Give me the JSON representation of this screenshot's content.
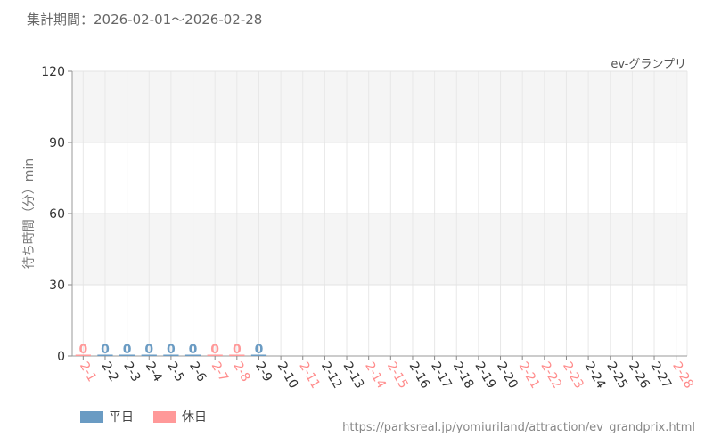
{
  "header": {
    "period": "集計期間：2026-02-01〜2026-02-28"
  },
  "attraction_name": "ev-グランプリ",
  "source_url": "https://parksreal.jp/yomiuriland/attraction/ev_grandprix.html",
  "legend": [
    {
      "label": "平日",
      "color": "#6a9bc3"
    },
    {
      "label": "休日",
      "color": "#ff9999"
    }
  ],
  "chart_data": {
    "type": "bar",
    "title": "",
    "xlabel": "",
    "ylabel": "待ち時間（分）min",
    "ylim": [
      0,
      120
    ],
    "yticks": [
      0,
      30,
      60,
      90,
      120
    ],
    "grid": true,
    "alternating_bands": true,
    "categories": [
      "2-1",
      "2-2",
      "2-3",
      "2-4",
      "2-5",
      "2-6",
      "2-7",
      "2-8",
      "2-9",
      "2-10",
      "2-11",
      "2-12",
      "2-13",
      "2-14",
      "2-15",
      "2-16",
      "2-17",
      "2-18",
      "2-19",
      "2-20",
      "2-21",
      "2-22",
      "2-23",
      "2-24",
      "2-25",
      "2-26",
      "2-27",
      "2-28"
    ],
    "day_type": [
      "holiday",
      "weekday",
      "weekday",
      "weekday",
      "weekday",
      "weekday",
      "holiday",
      "holiday",
      "weekday",
      "weekday",
      "holiday",
      "weekday",
      "weekday",
      "holiday",
      "holiday",
      "weekday",
      "weekday",
      "weekday",
      "weekday",
      "weekday",
      "holiday",
      "holiday",
      "holiday",
      "weekday",
      "weekday",
      "weekday",
      "weekday",
      "holiday"
    ],
    "values": [
      0,
      0,
      0,
      0,
      0,
      0,
      0,
      0,
      0,
      null,
      null,
      null,
      null,
      null,
      null,
      null,
      null,
      null,
      null,
      null,
      null,
      null,
      null,
      null,
      null,
      null,
      null,
      null
    ],
    "value_labels": [
      "0",
      "0",
      "0",
      "0",
      "0",
      "0",
      "0",
      "0",
      "0",
      "",
      "",
      "",
      "",
      "",
      "",
      "",
      "",
      "",
      "",
      "",
      "",
      "",
      "",
      "",
      "",
      "",
      "",
      ""
    ],
    "colors": {
      "weekday": "#6a9bc3",
      "holiday": "#ff9999"
    }
  }
}
